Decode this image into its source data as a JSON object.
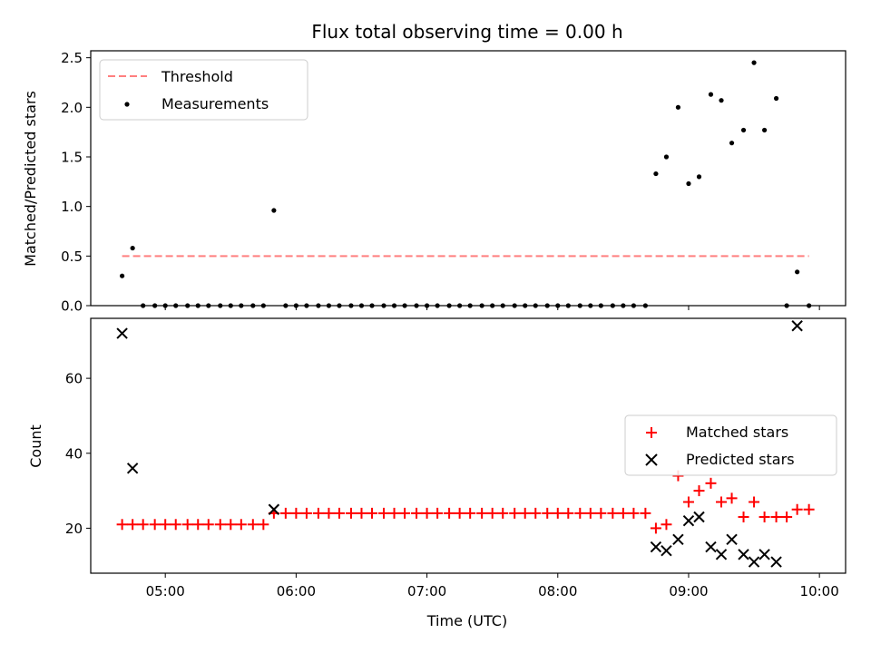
{
  "figure_title": "Flux total observing time = 0.00 h",
  "chart_data": [
    {
      "type": "scatter",
      "ylabel": "Matched/Predicted stars",
      "xlim": [
        4.43,
        10.2
      ],
      "ylim": [
        0,
        2.57
      ],
      "yticks": [
        "0.0",
        "0.5",
        "1.0",
        "1.5",
        "2.0",
        "2.5"
      ],
      "legend": {
        "placement": "top-left"
      },
      "threshold": {
        "name": "Threshold",
        "value": 0.5,
        "x": [
          4.67,
          9.92
        ],
        "color": "#ff7f7f",
        "style": "dashed"
      },
      "series": [
        {
          "name": "Measurements",
          "marker": "dot",
          "color": "#000000",
          "points": [
            [
              4.67,
              0.3
            ],
            [
              4.75,
              0.58
            ],
            [
              4.83,
              0.0
            ],
            [
              4.92,
              0.0
            ],
            [
              5.0,
              0.0
            ],
            [
              5.08,
              0.0
            ],
            [
              5.17,
              0.0
            ],
            [
              5.25,
              0.0
            ],
            [
              5.33,
              0.0
            ],
            [
              5.42,
              0.0
            ],
            [
              5.5,
              0.0
            ],
            [
              5.58,
              0.0
            ],
            [
              5.67,
              0.0
            ],
            [
              5.75,
              0.0
            ],
            [
              5.83,
              0.96
            ],
            [
              5.92,
              0.0
            ],
            [
              6.0,
              0.0
            ],
            [
              6.08,
              0.0
            ],
            [
              6.17,
              0.0
            ],
            [
              6.25,
              0.0
            ],
            [
              6.33,
              0.0
            ],
            [
              6.42,
              0.0
            ],
            [
              6.5,
              0.0
            ],
            [
              6.58,
              0.0
            ],
            [
              6.67,
              0.0
            ],
            [
              6.75,
              0.0
            ],
            [
              6.83,
              0.0
            ],
            [
              6.92,
              0.0
            ],
            [
              7.0,
              0.0
            ],
            [
              7.08,
              0.0
            ],
            [
              7.17,
              0.0
            ],
            [
              7.25,
              0.0
            ],
            [
              7.33,
              0.0
            ],
            [
              7.42,
              0.0
            ],
            [
              7.5,
              0.0
            ],
            [
              7.58,
              0.0
            ],
            [
              7.67,
              0.0
            ],
            [
              7.75,
              0.0
            ],
            [
              7.83,
              0.0
            ],
            [
              7.92,
              0.0
            ],
            [
              8.0,
              0.0
            ],
            [
              8.08,
              0.0
            ],
            [
              8.17,
              0.0
            ],
            [
              8.25,
              0.0
            ],
            [
              8.33,
              0.0
            ],
            [
              8.42,
              0.0
            ],
            [
              8.5,
              0.0
            ],
            [
              8.58,
              0.0
            ],
            [
              8.67,
              0.0
            ],
            [
              8.75,
              1.33
            ],
            [
              8.83,
              1.5
            ],
            [
              8.92,
              2.0
            ],
            [
              9.0,
              1.23
            ],
            [
              9.08,
              1.3
            ],
            [
              9.17,
              2.13
            ],
            [
              9.25,
              2.07
            ],
            [
              9.33,
              1.64
            ],
            [
              9.42,
              1.77
            ],
            [
              9.5,
              2.45
            ],
            [
              9.58,
              1.77
            ],
            [
              9.67,
              2.09
            ],
            [
              9.75,
              0.0
            ],
            [
              9.83,
              0.34
            ],
            [
              9.92,
              0.0
            ]
          ]
        }
      ]
    },
    {
      "type": "scatter",
      "xlabel": "Time (UTC)",
      "ylabel": "Count",
      "xlim": [
        4.43,
        10.2
      ],
      "ylim": [
        8,
        76
      ],
      "xticks": [
        "05:00",
        "06:00",
        "07:00",
        "08:00",
        "09:00",
        "10:00"
      ],
      "xtick_values": [
        5,
        6,
        7,
        8,
        9,
        10
      ],
      "yticks": [
        "20",
        "40",
        "60"
      ],
      "legend": {
        "placement": "center-right"
      },
      "series": [
        {
          "name": "Matched stars",
          "marker": "plus",
          "color": "#ff0000",
          "points": [
            [
              4.67,
              21
            ],
            [
              4.75,
              21
            ],
            [
              4.83,
              21
            ],
            [
              4.92,
              21
            ],
            [
              5.0,
              21
            ],
            [
              5.08,
              21
            ],
            [
              5.17,
              21
            ],
            [
              5.25,
              21
            ],
            [
              5.33,
              21
            ],
            [
              5.42,
              21
            ],
            [
              5.5,
              21
            ],
            [
              5.58,
              21
            ],
            [
              5.67,
              21
            ],
            [
              5.75,
              21
            ],
            [
              5.83,
              24
            ],
            [
              5.92,
              24
            ],
            [
              6.0,
              24
            ],
            [
              6.08,
              24
            ],
            [
              6.17,
              24
            ],
            [
              6.25,
              24
            ],
            [
              6.33,
              24
            ],
            [
              6.42,
              24
            ],
            [
              6.5,
              24
            ],
            [
              6.58,
              24
            ],
            [
              6.67,
              24
            ],
            [
              6.75,
              24
            ],
            [
              6.83,
              24
            ],
            [
              6.92,
              24
            ],
            [
              7.0,
              24
            ],
            [
              7.08,
              24
            ],
            [
              7.17,
              24
            ],
            [
              7.25,
              24
            ],
            [
              7.33,
              24
            ],
            [
              7.42,
              24
            ],
            [
              7.5,
              24
            ],
            [
              7.58,
              24
            ],
            [
              7.67,
              24
            ],
            [
              7.75,
              24
            ],
            [
              7.83,
              24
            ],
            [
              7.92,
              24
            ],
            [
              8.0,
              24
            ],
            [
              8.08,
              24
            ],
            [
              8.17,
              24
            ],
            [
              8.25,
              24
            ],
            [
              8.33,
              24
            ],
            [
              8.42,
              24
            ],
            [
              8.5,
              24
            ],
            [
              8.58,
              24
            ],
            [
              8.67,
              24
            ],
            [
              8.75,
              20
            ],
            [
              8.83,
              21
            ],
            [
              8.92,
              34
            ],
            [
              9.0,
              27
            ],
            [
              9.08,
              30
            ],
            [
              9.17,
              32
            ],
            [
              9.25,
              27
            ],
            [
              9.33,
              28
            ],
            [
              9.42,
              23
            ],
            [
              9.5,
              27
            ],
            [
              9.58,
              23
            ],
            [
              9.67,
              23
            ],
            [
              9.75,
              23
            ],
            [
              9.83,
              25
            ],
            [
              9.92,
              25
            ]
          ]
        },
        {
          "name": "Predicted stars",
          "marker": "x",
          "color": "#000000",
          "points": [
            [
              4.67,
              72
            ],
            [
              4.75,
              36
            ],
            [
              5.83,
              25
            ],
            [
              8.75,
              15
            ],
            [
              8.83,
              14
            ],
            [
              8.92,
              17
            ],
            [
              9.0,
              22
            ],
            [
              9.08,
              23
            ],
            [
              9.17,
              15
            ],
            [
              9.25,
              13
            ],
            [
              9.33,
              17
            ],
            [
              9.42,
              13
            ],
            [
              9.5,
              11
            ],
            [
              9.58,
              13
            ],
            [
              9.67,
              11
            ],
            [
              9.83,
              74
            ]
          ]
        }
      ]
    }
  ]
}
